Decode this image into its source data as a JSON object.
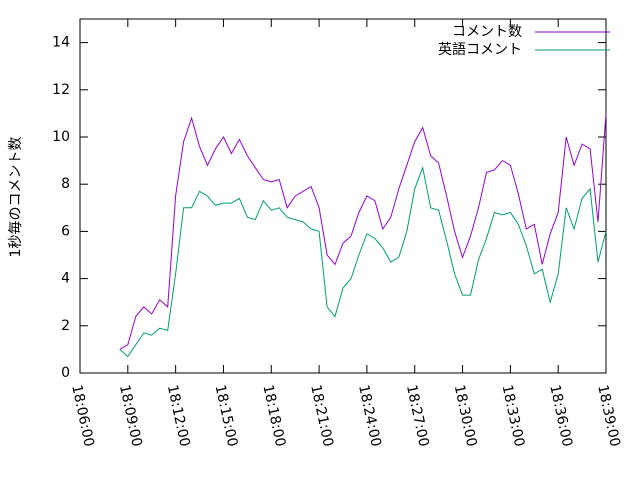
{
  "chart_data": {
    "type": "line",
    "ylabel": "1秒毎のコメント数",
    "x": [
      "18:08:30",
      "18:09:00",
      "18:09:30",
      "18:10:00",
      "18:10:30",
      "18:11:00",
      "18:11:30",
      "18:12:00",
      "18:12:30",
      "18:13:00",
      "18:13:30",
      "18:14:00",
      "18:14:30",
      "18:15:00",
      "18:15:30",
      "18:16:00",
      "18:16:30",
      "18:17:00",
      "18:17:30",
      "18:18:00",
      "18:18:30",
      "18:19:00",
      "18:19:30",
      "18:20:00",
      "18:20:30",
      "18:21:00",
      "18:21:30",
      "18:22:00",
      "18:22:30",
      "18:23:00",
      "18:23:30",
      "18:24:00",
      "18:24:30",
      "18:25:00",
      "18:25:30",
      "18:26:00",
      "18:26:30",
      "18:27:00",
      "18:27:30",
      "18:28:00",
      "18:28:30",
      "18:29:00",
      "18:29:30",
      "18:30:00",
      "18:30:30",
      "18:31:00",
      "18:31:30",
      "18:32:00",
      "18:32:30",
      "18:33:00",
      "18:33:30",
      "18:34:00",
      "18:34:30",
      "18:35:00",
      "18:35:30",
      "18:36:00",
      "18:36:30",
      "18:37:00",
      "18:37:30",
      "18:38:00",
      "18:38:30",
      "18:39:00"
    ],
    "series": [
      {
        "name": "コメント数",
        "color": "#9400d3",
        "values": [
          1.0,
          1.2,
          2.4,
          2.8,
          2.5,
          3.1,
          2.8,
          7.5,
          9.8,
          10.8,
          9.6,
          8.8,
          9.5,
          10.0,
          9.3,
          9.9,
          9.2,
          8.7,
          8.2,
          8.1,
          8.2,
          7.0,
          7.5,
          7.7,
          7.9,
          7.0,
          5.0,
          4.6,
          5.5,
          5.8,
          6.8,
          7.5,
          7.3,
          6.1,
          6.6,
          7.8,
          8.8,
          9.8,
          10.4,
          9.2,
          8.9,
          7.5,
          6.0,
          4.9,
          5.8,
          7.0,
          8.5,
          8.6,
          9.0,
          8.8,
          7.6,
          6.1,
          6.3,
          4.6,
          5.9,
          6.8,
          10.0,
          8.8,
          9.7,
          9.5,
          6.4,
          11.0
        ]
      },
      {
        "name": "英語コメント",
        "color": "#009e73",
        "values": [
          1.0,
          0.7,
          1.2,
          1.7,
          1.6,
          1.9,
          1.8,
          4.2,
          7.0,
          7.0,
          7.7,
          7.5,
          7.1,
          7.2,
          7.2,
          7.4,
          6.6,
          6.5,
          7.3,
          6.9,
          7.0,
          6.6,
          6.5,
          6.4,
          6.1,
          6.0,
          2.8,
          2.4,
          3.6,
          4.0,
          5.0,
          5.9,
          5.7,
          5.3,
          4.7,
          4.9,
          6.0,
          7.8,
          8.7,
          7.0,
          6.9,
          5.6,
          4.2,
          3.3,
          3.3,
          4.8,
          5.7,
          6.8,
          6.7,
          6.8,
          6.3,
          5.4,
          4.2,
          4.4,
          3.0,
          4.2,
          7.0,
          6.1,
          7.4,
          7.8,
          4.7,
          6.0
        ]
      }
    ],
    "xlim": [
      "18:06:00",
      "18:39:00"
    ],
    "xticks": [
      "18:06:00",
      "18:09:00",
      "18:12:00",
      "18:15:00",
      "18:18:00",
      "18:21:00",
      "18:24:00",
      "18:27:00",
      "18:30:00",
      "18:33:00",
      "18:36:00",
      "18:39:00"
    ],
    "ylim": [
      0,
      15
    ],
    "yticks": [
      0,
      2,
      4,
      6,
      8,
      10,
      12,
      14
    ],
    "legend": "top-right",
    "grid": false
  }
}
